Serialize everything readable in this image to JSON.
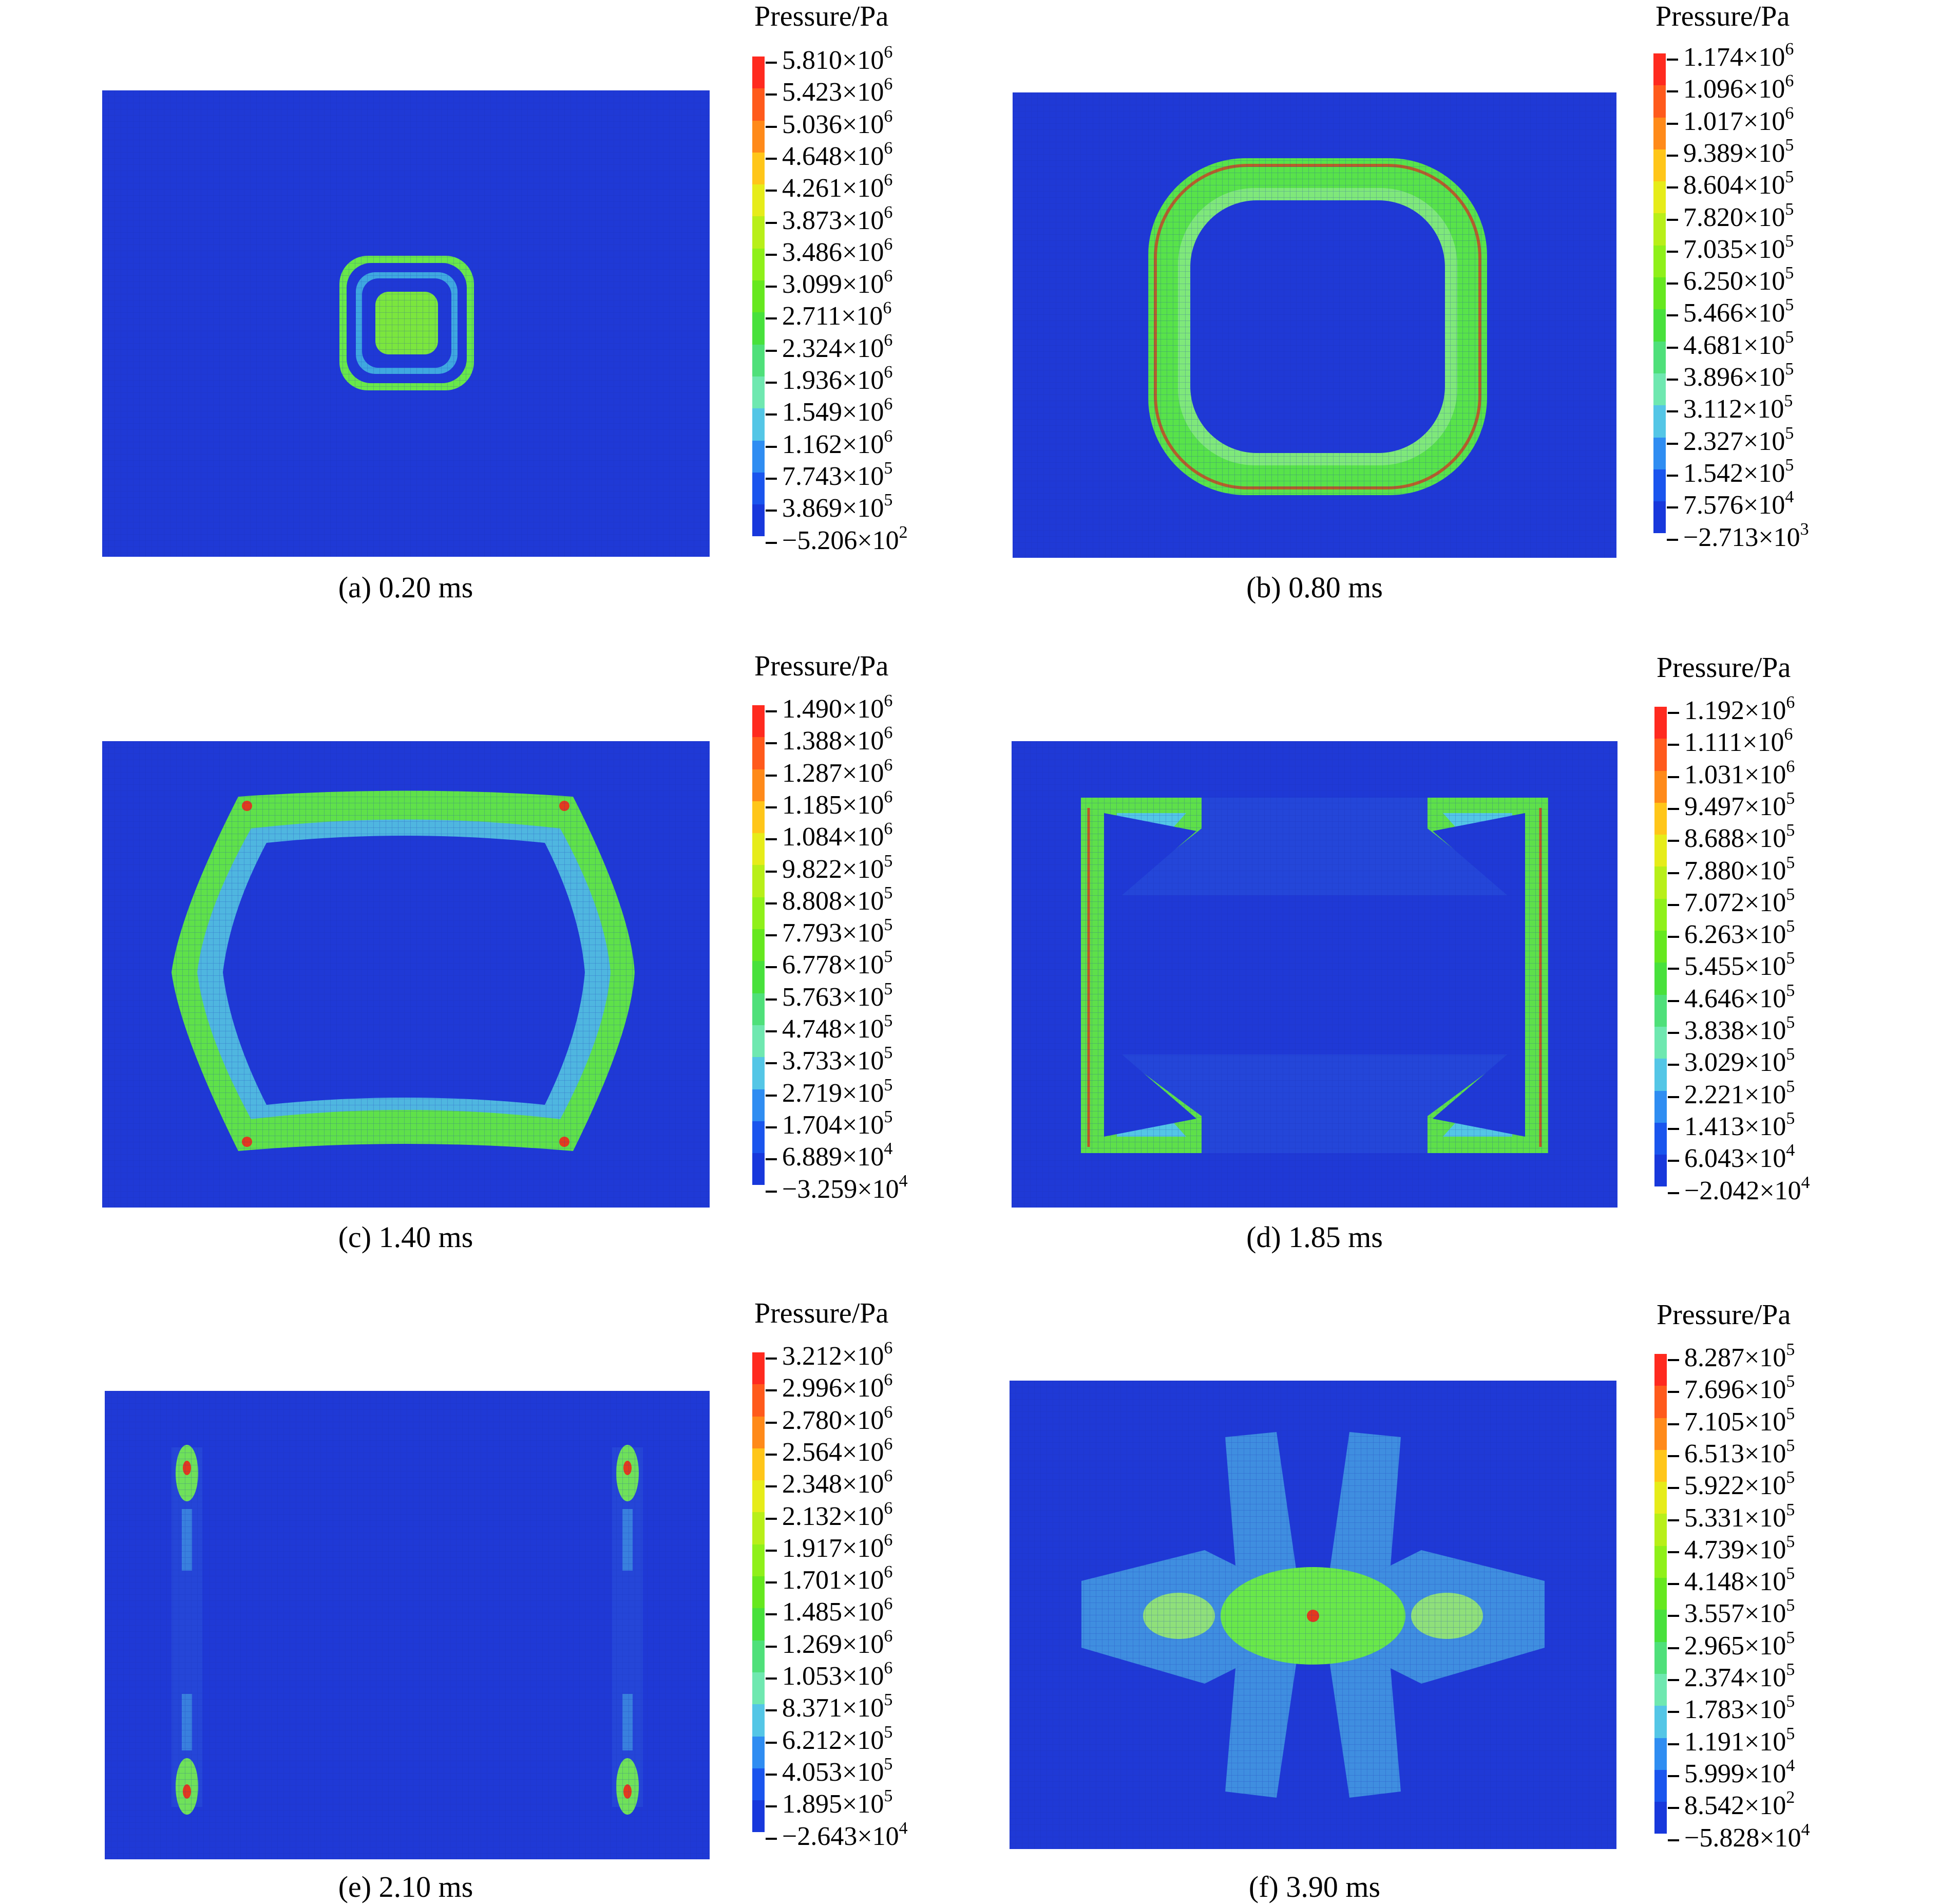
{
  "figure": {
    "panels": [
      {
        "caption": "(a) 0.20 ms",
        "legend_title": "Pressure/Pa",
        "ticks": [
          {
            "m": "5.810×10",
            "e": "6"
          },
          {
            "m": "5.423×10",
            "e": "6"
          },
          {
            "m": "5.036×10",
            "e": "6"
          },
          {
            "m": "4.648×10",
            "e": "6"
          },
          {
            "m": "4.261×10",
            "e": "6"
          },
          {
            "m": "3.873×10",
            "e": "6"
          },
          {
            "m": "3.486×10",
            "e": "6"
          },
          {
            "m": "3.099×10",
            "e": "6"
          },
          {
            "m": "2.711×10",
            "e": "6"
          },
          {
            "m": "2.324×10",
            "e": "6"
          },
          {
            "m": "1.936×10",
            "e": "6"
          },
          {
            "m": "1.549×10",
            "e": "6"
          },
          {
            "m": "1.162×10",
            "e": "6"
          },
          {
            "m": "7.743×10",
            "e": "5"
          },
          {
            "m": "3.869×10",
            "e": "5"
          },
          {
            "m": "−5.206×10",
            "e": "2"
          }
        ]
      },
      {
        "caption": "(b) 0.80 ms",
        "legend_title": "Pressure/Pa",
        "ticks": [
          {
            "m": "1.174×10",
            "e": "6"
          },
          {
            "m": "1.096×10",
            "e": "6"
          },
          {
            "m": "1.017×10",
            "e": "6"
          },
          {
            "m": "9.389×10",
            "e": "5"
          },
          {
            "m": "8.604×10",
            "e": "5"
          },
          {
            "m": "7.820×10",
            "e": "5"
          },
          {
            "m": "7.035×10",
            "e": "5"
          },
          {
            "m": "6.250×10",
            "e": "5"
          },
          {
            "m": "5.466×10",
            "e": "5"
          },
          {
            "m": "4.681×10",
            "e": "5"
          },
          {
            "m": "3.896×10",
            "e": "5"
          },
          {
            "m": "3.112×10",
            "e": "5"
          },
          {
            "m": "2.327×10",
            "e": "5"
          },
          {
            "m": "1.542×10",
            "e": "5"
          },
          {
            "m": "7.576×10",
            "e": "4"
          },
          {
            "m": "−2.713×10",
            "e": "3"
          }
        ]
      },
      {
        "caption": "(c) 1.40 ms",
        "legend_title": "Pressure/Pa",
        "ticks": [
          {
            "m": "1.490×10",
            "e": "6"
          },
          {
            "m": "1.388×10",
            "e": "6"
          },
          {
            "m": "1.287×10",
            "e": "6"
          },
          {
            "m": "1.185×10",
            "e": "6"
          },
          {
            "m": "1.084×10",
            "e": "6"
          },
          {
            "m": "9.822×10",
            "e": "5"
          },
          {
            "m": "8.808×10",
            "e": "5"
          },
          {
            "m": "7.793×10",
            "e": "5"
          },
          {
            "m": "6.778×10",
            "e": "5"
          },
          {
            "m": "5.763×10",
            "e": "5"
          },
          {
            "m": "4.748×10",
            "e": "5"
          },
          {
            "m": "3.733×10",
            "e": "5"
          },
          {
            "m": "2.719×10",
            "e": "5"
          },
          {
            "m": "1.704×10",
            "e": "5"
          },
          {
            "m": "6.889×10",
            "e": "4"
          },
          {
            "m": "−3.259×10",
            "e": "4"
          }
        ]
      },
      {
        "caption": "(d) 1.85 ms",
        "legend_title": "Pressure/Pa",
        "ticks": [
          {
            "m": "1.192×10",
            "e": "6"
          },
          {
            "m": "1.111×10",
            "e": "6"
          },
          {
            "m": "1.031×10",
            "e": "6"
          },
          {
            "m": "9.497×10",
            "e": "5"
          },
          {
            "m": "8.688×10",
            "e": "5"
          },
          {
            "m": "7.880×10",
            "e": "5"
          },
          {
            "m": "7.072×10",
            "e": "5"
          },
          {
            "m": "6.263×10",
            "e": "5"
          },
          {
            "m": "5.455×10",
            "e": "5"
          },
          {
            "m": "4.646×10",
            "e": "5"
          },
          {
            "m": "3.838×10",
            "e": "5"
          },
          {
            "m": "3.029×10",
            "e": "5"
          },
          {
            "m": "2.221×10",
            "e": "5"
          },
          {
            "m": "1.413×10",
            "e": "5"
          },
          {
            "m": "6.043×10",
            "e": "4"
          },
          {
            "m": "−2.042×10",
            "e": "4"
          }
        ]
      },
      {
        "caption": "(e) 2.10 ms",
        "legend_title": "Pressure/Pa",
        "ticks": [
          {
            "m": "3.212×10",
            "e": "6"
          },
          {
            "m": "2.996×10",
            "e": "6"
          },
          {
            "m": "2.780×10",
            "e": "6"
          },
          {
            "m": "2.564×10",
            "e": "6"
          },
          {
            "m": "2.348×10",
            "e": "6"
          },
          {
            "m": "2.132×10",
            "e": "6"
          },
          {
            "m": "1.917×10",
            "e": "6"
          },
          {
            "m": "1.701×10",
            "e": "6"
          },
          {
            "m": "1.485×10",
            "e": "6"
          },
          {
            "m": "1.269×10",
            "e": "6"
          },
          {
            "m": "1.053×10",
            "e": "6"
          },
          {
            "m": "8.371×10",
            "e": "5"
          },
          {
            "m": "6.212×10",
            "e": "5"
          },
          {
            "m": "4.053×10",
            "e": "5"
          },
          {
            "m": "1.895×10",
            "e": "5"
          },
          {
            "m": "−2.643×10",
            "e": "4"
          }
        ]
      },
      {
        "caption": "(f) 3.90 ms",
        "legend_title": "Pressure/Pa",
        "ticks": [
          {
            "m": "8.287×10",
            "e": "5"
          },
          {
            "m": "7.696×10",
            "e": "5"
          },
          {
            "m": "7.105×10",
            "e": "5"
          },
          {
            "m": "6.513×10",
            "e": "5"
          },
          {
            "m": "5.922×10",
            "e": "5"
          },
          {
            "m": "5.331×10",
            "e": "5"
          },
          {
            "m": "4.739×10",
            "e": "5"
          },
          {
            "m": "4.148×10",
            "e": "5"
          },
          {
            "m": "3.557×10",
            "e": "5"
          },
          {
            "m": "2.965×10",
            "e": "5"
          },
          {
            "m": "2.374×10",
            "e": "5"
          },
          {
            "m": "1.783×10",
            "e": "5"
          },
          {
            "m": "1.191×10",
            "e": "5"
          },
          {
            "m": "5.999×10",
            "e": "4"
          },
          {
            "m": "8.542×10",
            "e": "2"
          },
          {
            "m": "−5.828×10",
            "e": "4"
          }
        ]
      }
    ],
    "colormap": [
      "#ff2a1f",
      "#ff5a1c",
      "#ff8a1a",
      "#ffc61a",
      "#e6ec1a",
      "#b8ef19",
      "#8ff01a",
      "#66e81f",
      "#48e13c",
      "#4fe07a",
      "#6fe8b0",
      "#54c6e6",
      "#2f8df2",
      "#1a55ee",
      "#1838dc"
    ]
  }
}
